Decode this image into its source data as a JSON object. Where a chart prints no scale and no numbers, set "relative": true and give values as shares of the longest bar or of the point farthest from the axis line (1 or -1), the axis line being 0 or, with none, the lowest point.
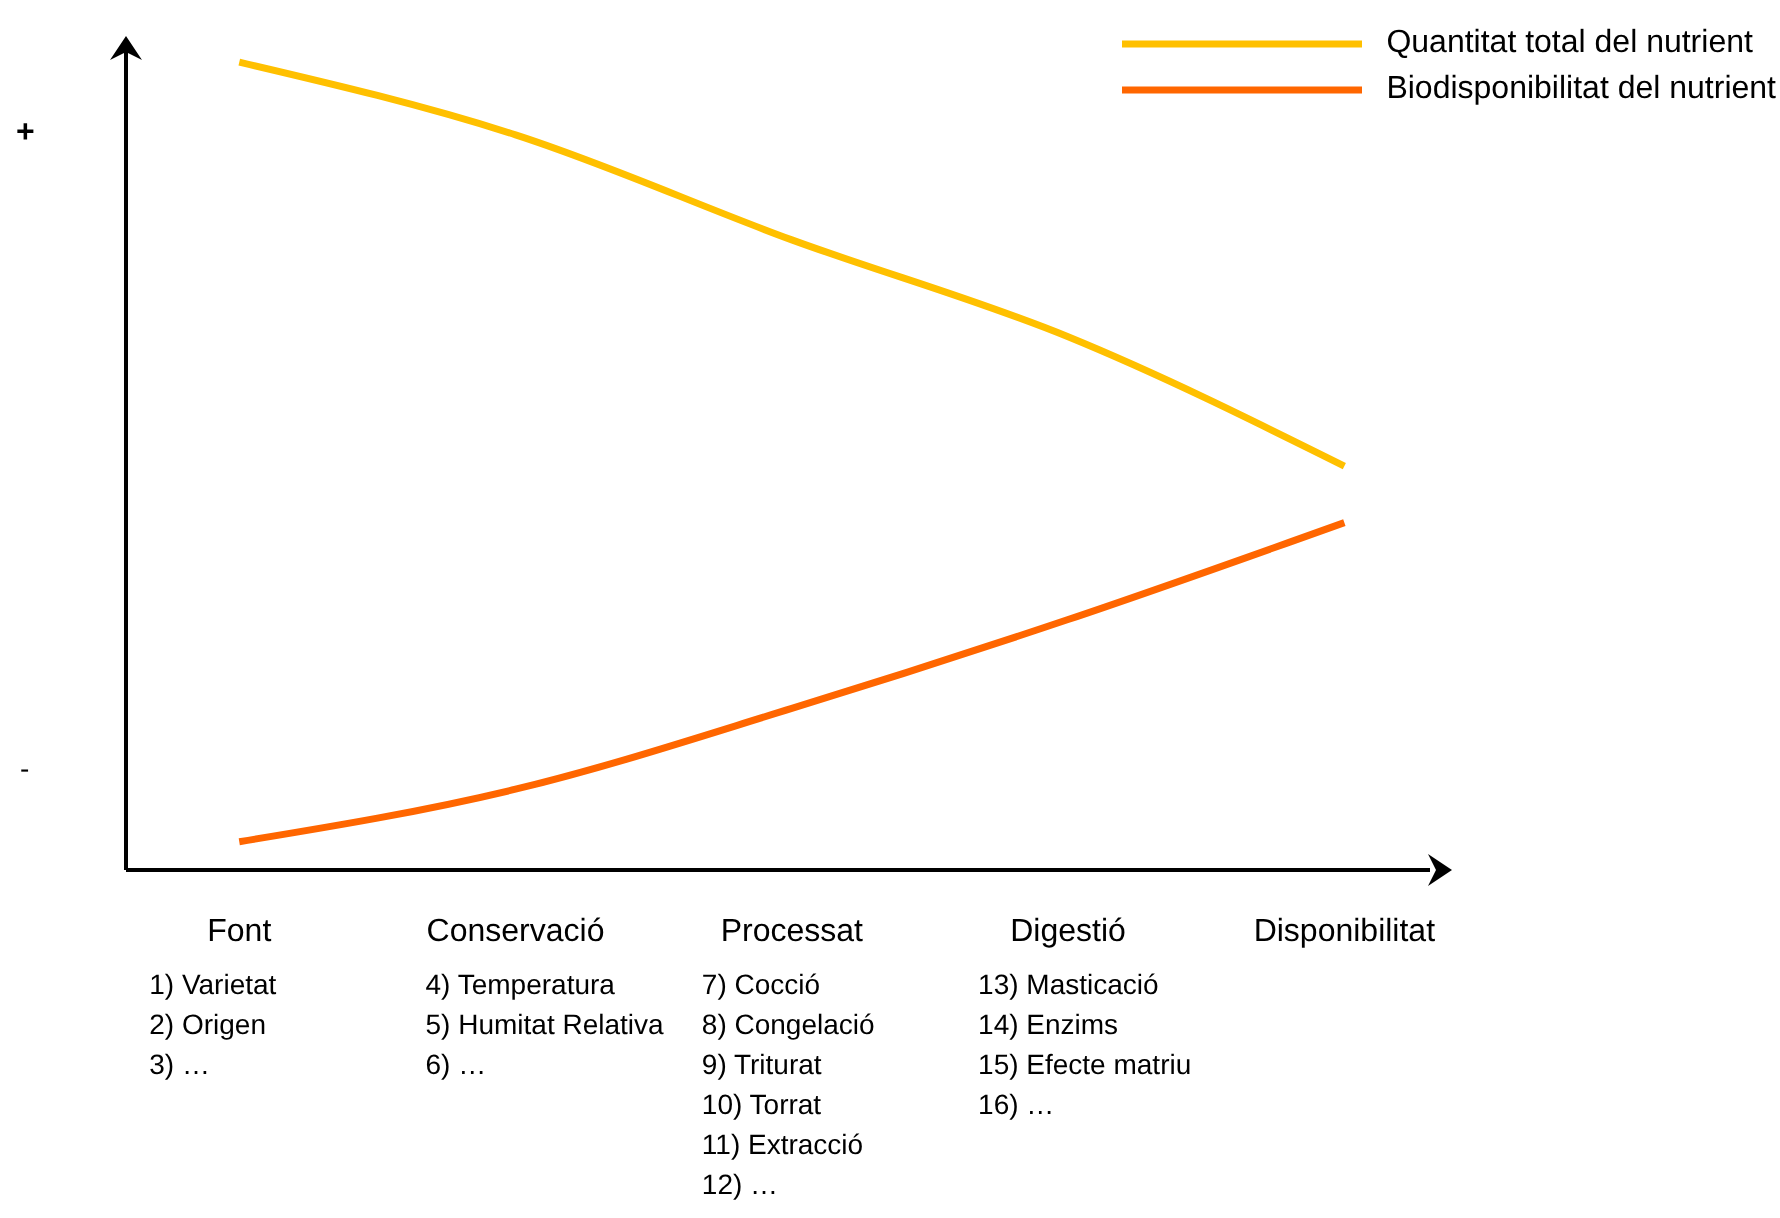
{
  "chart_data": {
    "type": "line",
    "relative": true,
    "categories": [
      "Font",
      "Conservació",
      "Processat",
      "Digestió",
      "Disponibilitat"
    ],
    "series": [
      {
        "name": "Quantitat total del nutrient",
        "color": "#ffc000",
        "values": [
          1,
          0.91,
          0.78,
          0.66,
          0.5
        ]
      },
      {
        "name": "Biodisponibilitat del nutrient",
        "color": "#ff6600",
        "values": [
          0.035,
          0.1,
          0.2,
          0.31,
          0.43
        ]
      }
    ],
    "legend": "top right",
    "marker": "none",
    "line_style": "solid",
    "grid": false,
    "annotations": [
      "+",
      "-",
      "1) Varietat\n2) Origen\n3) …",
      "4) Temperatura\n5) Humitat Relativa\n6) …",
      "7) Cocció\n8) Congelació\n9) Triturat\n10) Torrat\n11) Extracció\n12) …",
      "13) Masticació\n14) Enzims\n15) Efecte matriu\n16) …"
    ]
  }
}
